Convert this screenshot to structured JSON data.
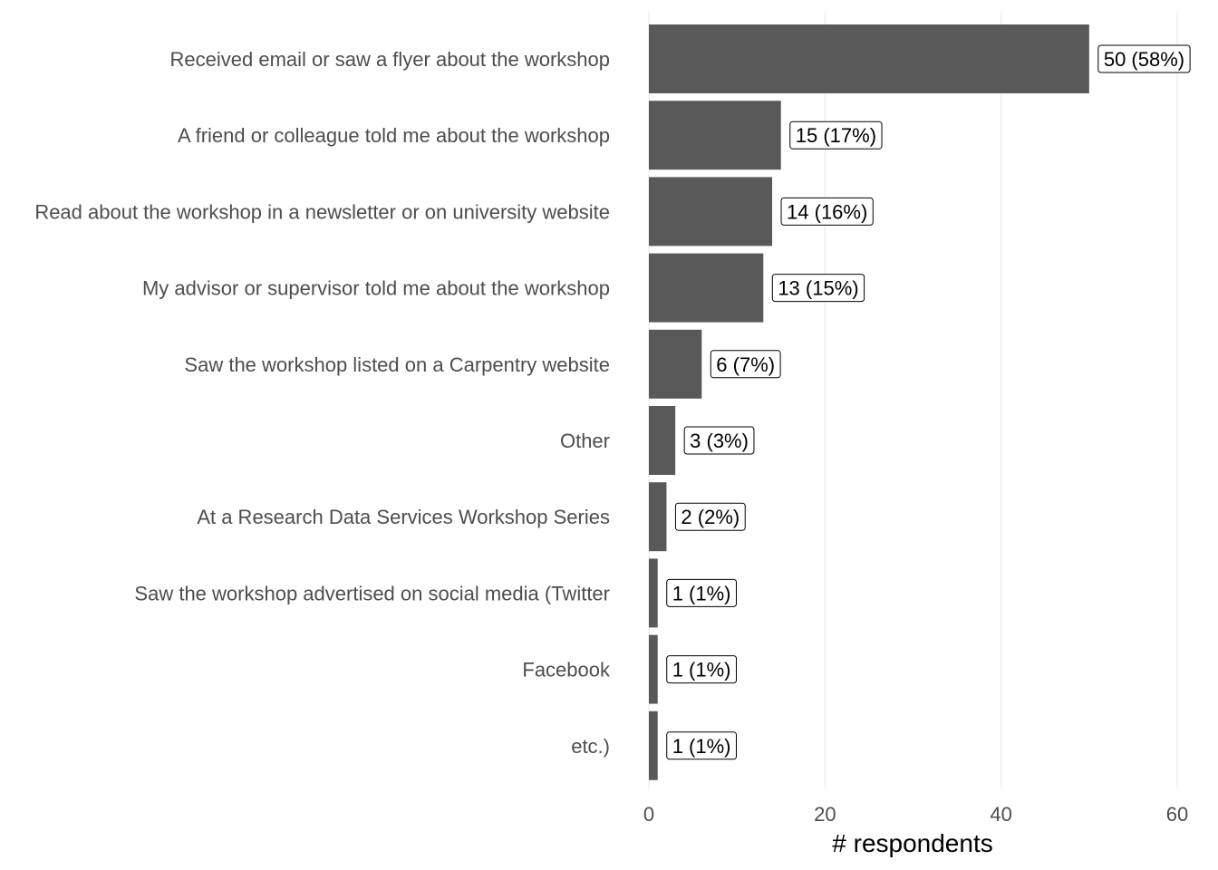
{
  "chart_data": {
    "type": "bar",
    "orientation": "horizontal",
    "categories": [
      "Received email or saw a flyer about the workshop",
      "A friend or colleague told me about the workshop",
      "Read about the workshop in a newsletter or on university website",
      "My advisor or supervisor told me about the workshop",
      "Saw the workshop listed on a Carpentry website",
      "Other",
      "At a Research Data Services Workshop Series",
      "Saw the workshop advertised on social media (Twitter",
      "Facebook",
      "etc.)"
    ],
    "values": [
      50,
      15,
      14,
      13,
      6,
      3,
      2,
      1,
      1,
      1
    ],
    "data_labels": [
      "50 (58%)",
      "15 (17%)",
      "14 (16%)",
      "13 (15%)",
      "6 (7%)",
      "3 (3%)",
      "2 (2%)",
      "1 (1%)",
      "1 (1%)",
      "1 (1%)"
    ],
    "title": "",
    "xlabel": "# respondents",
    "ylabel": "",
    "xlim": [
      0,
      60
    ],
    "x_ticks": [
      0,
      20,
      40,
      60
    ],
    "x_tick_labels": [
      "0",
      "20",
      "40",
      "60"
    ],
    "grid": "vertical major",
    "legend": "none",
    "bar_color": "#595959",
    "gridline_color": "#ebebeb"
  }
}
